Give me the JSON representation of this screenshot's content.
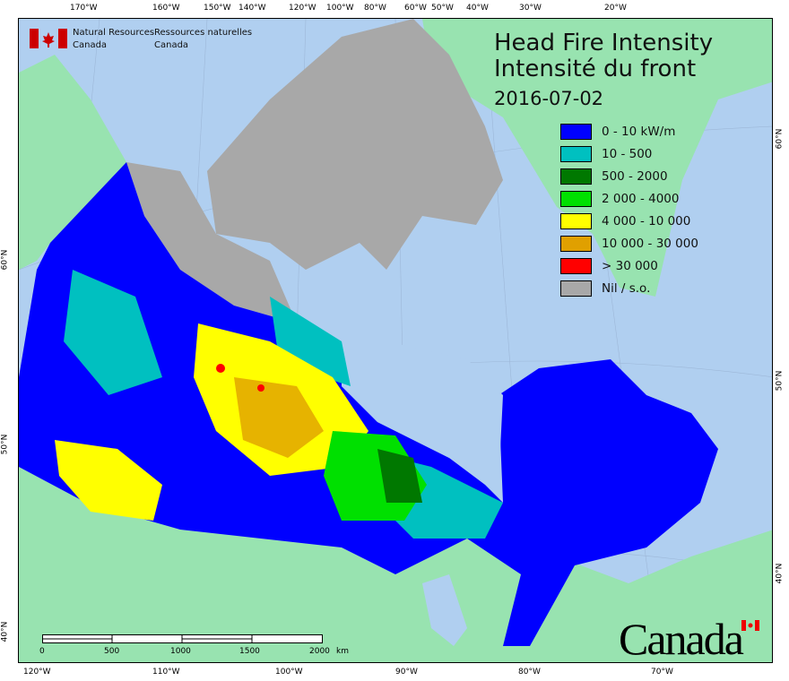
{
  "agency": {
    "en_line1": "Natural Resources",
    "en_line2": "Canada",
    "fr_line1": "Ressources naturelles",
    "fr_line2": "Canada"
  },
  "title": {
    "line1": "Head Fire Intensity",
    "line2": "Intensité du front",
    "date": "2016-07-02"
  },
  "legend": [
    {
      "label": "0 - 10 kW/m",
      "color": "#0000ff"
    },
    {
      "label": "10 - 500",
      "color": "#00c0c0"
    },
    {
      "label": "500 - 2000",
      "color": "#007800"
    },
    {
      "label": "2 000 - 4000",
      "color": "#00e000"
    },
    {
      "label": "4 000 - 10 000",
      "color": "#ffff00"
    },
    {
      "label": "10 000 - 30 000",
      "color": "#e0a000"
    },
    {
      "label": "> 30 000",
      "color": "#ff0000"
    },
    {
      "label": "Nil / s.o.",
      "color": "#a8a8a8"
    }
  ],
  "colors": {
    "ocean": "#b0cff0",
    "foreign_land": "#98e3b0"
  },
  "top_ticks": [
    "170°W",
    "160°W",
    "150°W",
    "140°W",
    "120°W",
    "100°W",
    "80°W",
    "60°W",
    "50°W",
    "40°W",
    "30°W",
    "20°W"
  ],
  "bottom_ticks": [
    "120°W",
    "110°W",
    "100°W",
    "90°W",
    "80°W",
    "70°W"
  ],
  "left_ticks": [
    "60°N",
    "50°N",
    "40°N"
  ],
  "right_ticks": [
    "60°N",
    "50°N",
    "40°N"
  ],
  "scale_bar": {
    "labels": [
      "0",
      "500",
      "1000",
      "1500",
      "2000"
    ],
    "unit": "km"
  },
  "wordmark": "Canada"
}
